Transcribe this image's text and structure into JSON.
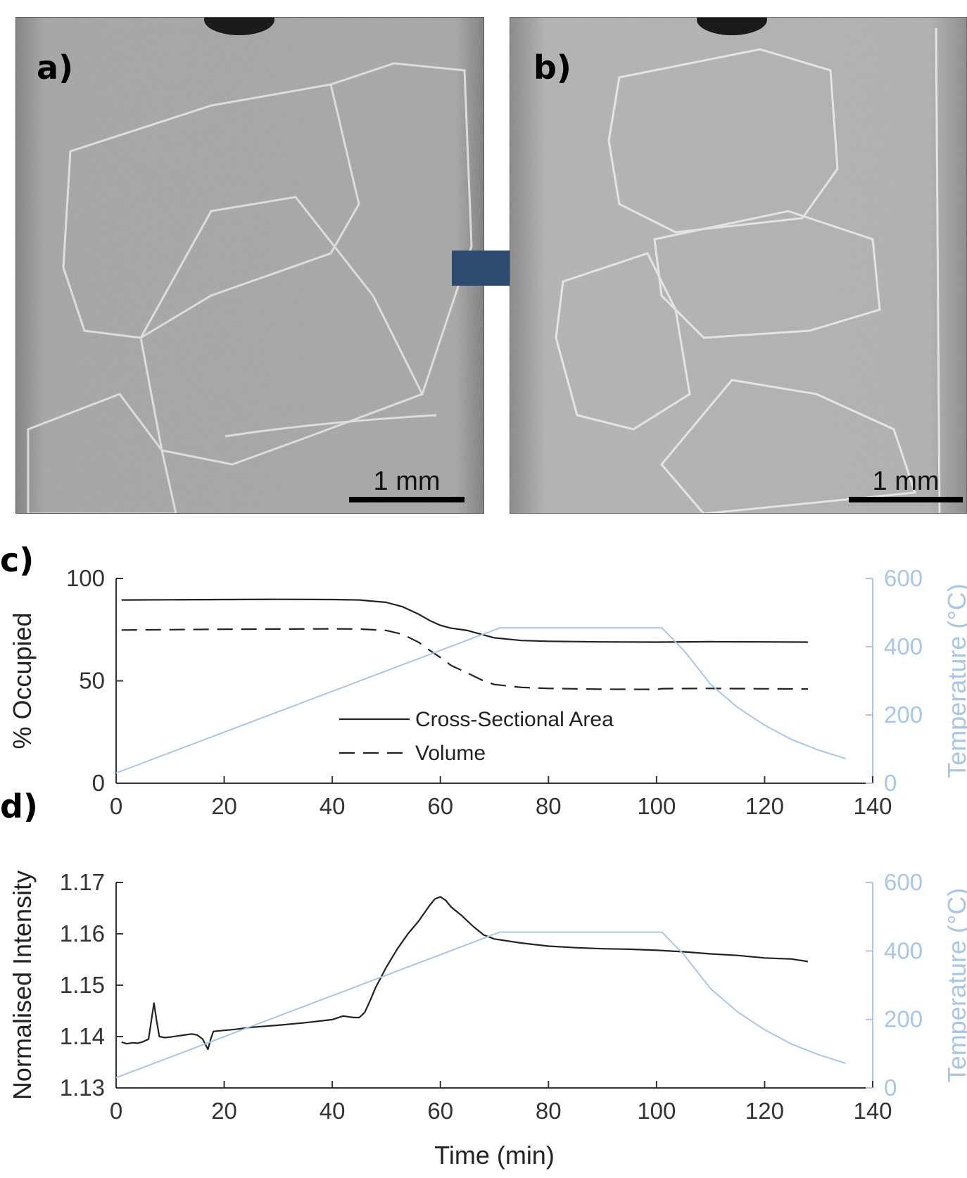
{
  "panels": {
    "a": {
      "label": "a)",
      "scale_bar": "1 mm"
    },
    "b": {
      "label": "b)",
      "scale_bar": "1 mm"
    },
    "c": {
      "label": "c)"
    },
    "d": {
      "label": "d)"
    }
  },
  "colors": {
    "temperature": "#a9c6e6",
    "data_line": "#222222",
    "arrow": "#2e4a6e",
    "image_bg": "#9c9c9c"
  },
  "chart_data": [
    {
      "id": "c",
      "type": "line",
      "title": "",
      "xlabel": "",
      "ylabel": "% Occupied",
      "ylabel_right": "Temperature (°C)",
      "xlim": [
        0,
        140
      ],
      "ylim": [
        0,
        100
      ],
      "ylim_right": [
        0,
        600
      ],
      "xticks": [
        "0",
        "20",
        "40",
        "60",
        "80",
        "100",
        "120",
        "140"
      ],
      "yticks": [
        "0",
        "50",
        "100"
      ],
      "yticks_right": [
        "0",
        "200",
        "400",
        "600"
      ],
      "legend_position": "bottom-center",
      "series": [
        {
          "name": "Cross-Sectional Area",
          "style": "solid",
          "axis": "left",
          "x": [
            1,
            10,
            20,
            30,
            40,
            45,
            50,
            53,
            56,
            58,
            60,
            62,
            65,
            68,
            70,
            75,
            80,
            90,
            100,
            110,
            120,
            128
          ],
          "y": [
            89.5,
            89.6,
            89.7,
            89.8,
            89.7,
            89.5,
            88.3,
            86.2,
            82.5,
            79.5,
            77.1,
            75.7,
            74.6,
            72.4,
            71.0,
            69.7,
            69.3,
            69.0,
            68.9,
            69.1,
            69.0,
            68.9
          ]
        },
        {
          "name": "Volume",
          "style": "dashed",
          "axis": "left",
          "x": [
            1,
            10,
            20,
            30,
            40,
            45,
            50,
            53,
            56,
            58,
            60,
            62,
            65,
            68,
            70,
            75,
            80,
            90,
            100,
            101,
            110,
            120,
            128
          ],
          "y": [
            74.8,
            75.0,
            75.2,
            75.3,
            75.4,
            75.3,
            74.6,
            72.7,
            68.8,
            64.9,
            61.4,
            57.5,
            53.8,
            50.0,
            48.2,
            46.8,
            46.3,
            45.9,
            45.8,
            46.2,
            46.3,
            46.1,
            46.0
          ]
        },
        {
          "axis": "right",
          "style": "solid",
          "x": [
            0,
            71,
            101,
            105,
            110,
            115,
            120,
            125,
            130,
            135
          ],
          "y": [
            30,
            455,
            455,
            390,
            290,
            222,
            170,
            128,
            97,
            72
          ]
        }
      ]
    },
    {
      "id": "d",
      "type": "line",
      "title": "",
      "xlabel": "Time (min)",
      "ylabel": "Normalised Intensity",
      "ylabel_right": "Temperature (°C)",
      "xlim": [
        0,
        140
      ],
      "ylim": [
        1.13,
        1.17
      ],
      "ylim_right": [
        0,
        600
      ],
      "xticks": [
        "0",
        "20",
        "40",
        "60",
        "80",
        "100",
        "120",
        "140"
      ],
      "yticks": [
        "1.13",
        "1.14",
        "1.15",
        "1.16",
        "1.17"
      ],
      "yticks_right": [
        "0",
        "200",
        "400",
        "600"
      ],
      "series": [
        {
          "axis": "left",
          "style": "solid",
          "x": [
            1,
            2,
            3,
            4,
            5,
            6,
            6.5,
            7,
            7.5,
            8,
            9,
            10,
            12,
            14,
            15,
            16,
            16.5,
            17,
            17.5,
            18,
            20,
            22,
            25,
            30,
            35,
            40,
            42,
            44,
            45,
            46,
            47,
            48,
            50,
            52,
            54,
            56,
            58,
            59,
            60,
            61,
            62,
            64,
            66,
            68,
            70,
            75,
            80,
            85,
            90,
            95,
            100,
            105,
            110,
            115,
            120,
            125,
            128
          ],
          "y": [
            1.1389,
            1.1386,
            1.1388,
            1.1387,
            1.139,
            1.1395,
            1.143,
            1.1465,
            1.143,
            1.14,
            1.1398,
            1.1399,
            1.1402,
            1.1405,
            1.1403,
            1.1395,
            1.1385,
            1.1375,
            1.1395,
            1.141,
            1.1412,
            1.1414,
            1.1418,
            1.1422,
            1.1427,
            1.1433,
            1.144,
            1.1437,
            1.1437,
            1.1447,
            1.147,
            1.1495,
            1.1535,
            1.157,
            1.16,
            1.1625,
            1.1655,
            1.1668,
            1.1672,
            1.1665,
            1.1652,
            1.1635,
            1.1615,
            1.1598,
            1.159,
            1.1582,
            1.1576,
            1.1573,
            1.1571,
            1.157,
            1.1568,
            1.1565,
            1.1561,
            1.1558,
            1.1553,
            1.1551,
            1.1546
          ]
        },
        {
          "axis": "right",
          "style": "solid",
          "x": [
            0,
            71,
            101,
            105,
            110,
            115,
            120,
            125,
            130,
            135
          ],
          "y": [
            30,
            455,
            455,
            390,
            290,
            222,
            170,
            128,
            97,
            72
          ]
        }
      ]
    }
  ]
}
